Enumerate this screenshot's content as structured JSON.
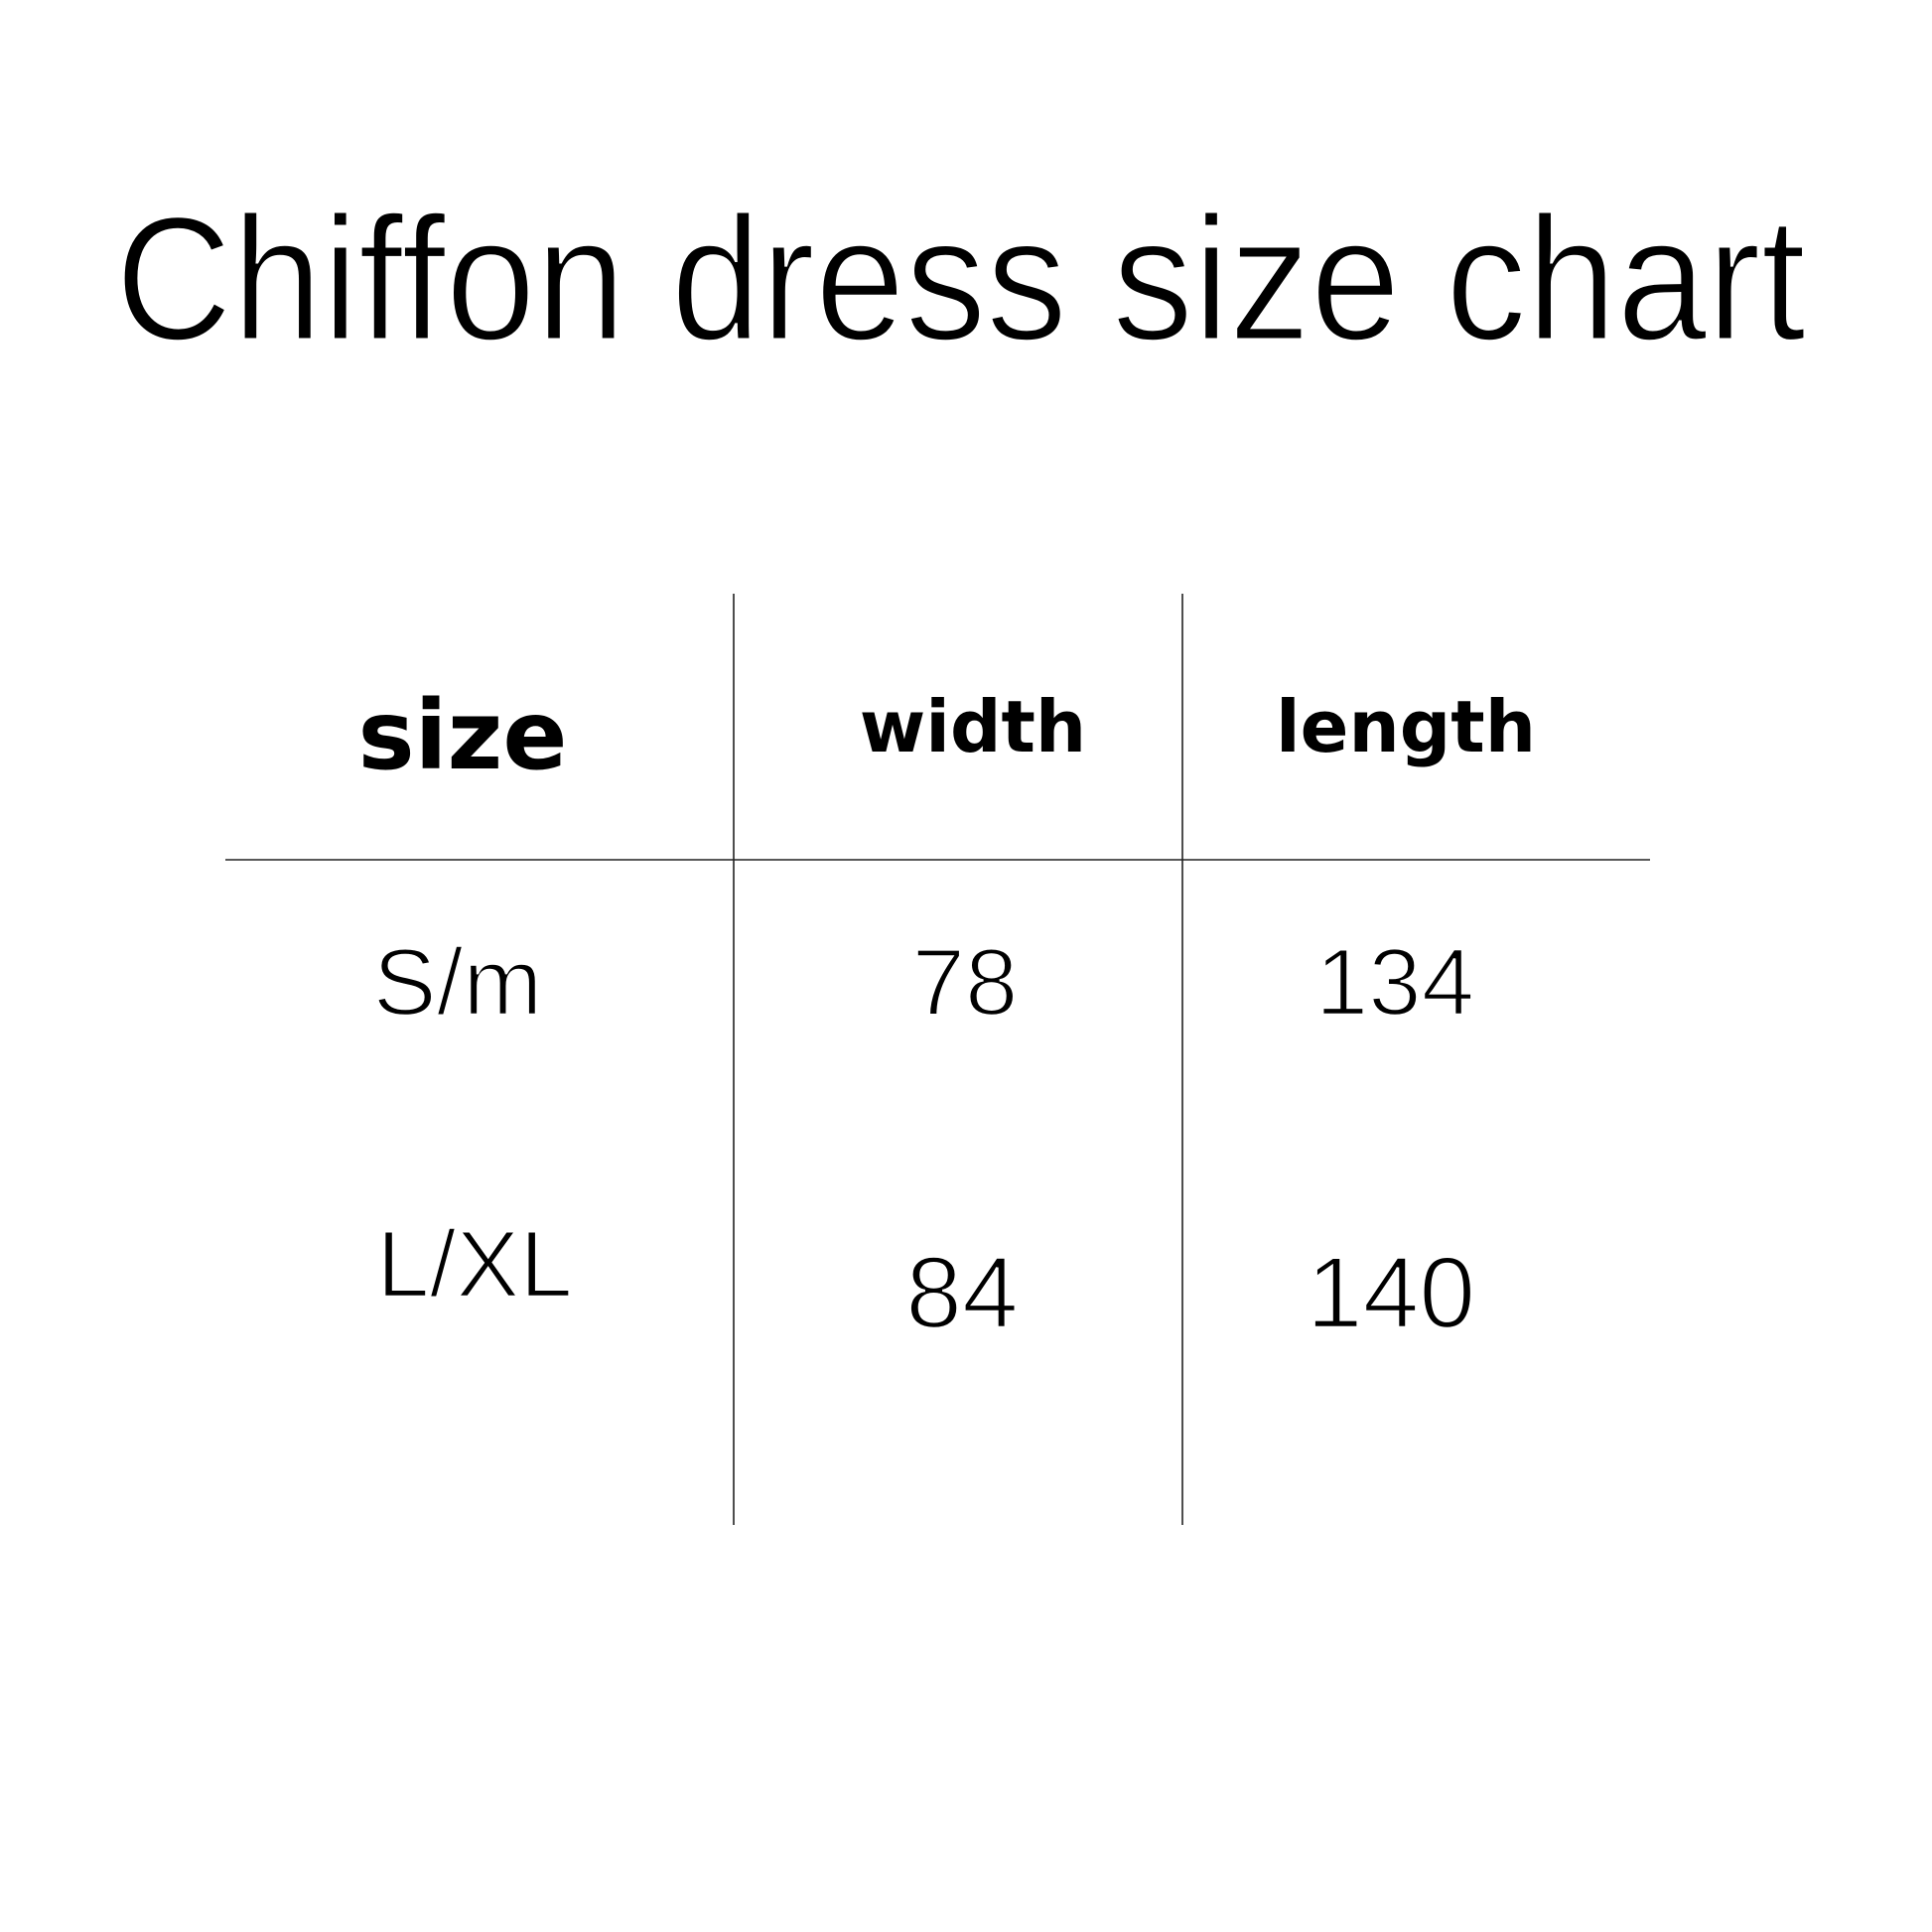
{
  "title": "Chiffon dress size chart",
  "table": {
    "headers": [
      "size",
      "width",
      "length"
    ],
    "rows": [
      [
        "S/m",
        "78",
        "134"
      ],
      [
        "L/XL",
        "84",
        "140"
      ]
    ]
  }
}
